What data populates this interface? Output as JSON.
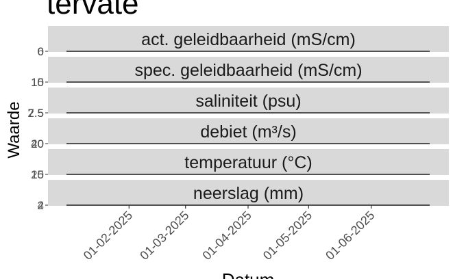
{
  "chart_data": {
    "type": "line",
    "title": "tervate",
    "xlabel": "Datum",
    "ylabel": "Waarde",
    "facet_strip_color": "#d9d9d9",
    "axis_text_color": "#4d4d4d",
    "x_range": [
      "2025-01-01",
      "2025-06-30"
    ],
    "x_ticks": [
      {
        "date": "2025-02-01",
        "label": "01-02-2025"
      },
      {
        "date": "2025-03-01",
        "label": "01-03-2025"
      },
      {
        "date": "2025-04-01",
        "label": "01-04-2025"
      },
      {
        "date": "2025-05-01",
        "label": "01-05-2025"
      },
      {
        "date": "2025-06-01",
        "label": "01-06-2025"
      }
    ],
    "panels": [
      {
        "label": "act. geleidbaarheid (mS/cm)",
        "y_ticks": [
          "0",
          "6"
        ]
      },
      {
        "label": "spec. geleidbaarheid (mS/cm)",
        "y_ticks": [
          "10",
          "15"
        ]
      },
      {
        "label": "saliniteit (psu)",
        "y_ticks": [
          "2.5",
          "7.5"
        ]
      },
      {
        "label": "debiet (m³/s)",
        "y_ticks": [
          "20",
          "40"
        ]
      },
      {
        "label": "temperatuur (°C)",
        "y_ticks": [
          "15",
          "20"
        ]
      },
      {
        "label": "neerslag (mm)",
        "y_ticks": [
          "2",
          "4"
        ]
      }
    ],
    "series": []
  }
}
